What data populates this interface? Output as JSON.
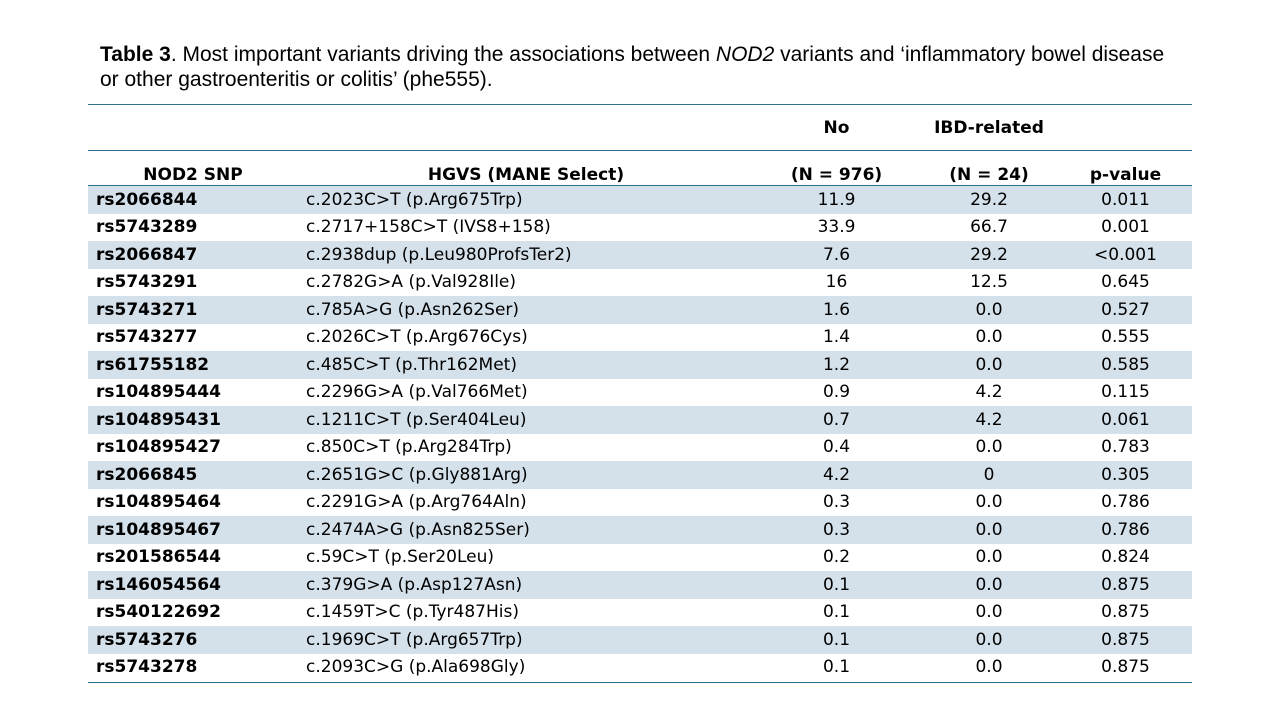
{
  "caption": {
    "label": "Table 3",
    "text_1": ". Most important variants driving the associations between ",
    "italic": "NOD2",
    "text_2": " variants and ‘inflammatory bowel disease or other gastroenteritis or colitis’ (phe555)."
  },
  "table": {
    "headers": {
      "snp": "NOD2 SNP",
      "hgvs": "HGVS (MANE Select)",
      "no_top": "No",
      "no_bottom": "(N = 976)",
      "ibd_top": "IBD-related",
      "ibd_bottom": "(N = 24)",
      "p": "p-value"
    },
    "rows": [
      {
        "snp": "rs2066844",
        "hgvs": "c.2023C>T (p.Arg675Trp)",
        "no": "11.9",
        "ibd": "29.2",
        "p": "0.011"
      },
      {
        "snp": "rs5743289",
        "hgvs": "c.2717+158C>T (IVS8+158)",
        "no": "33.9",
        "ibd": "66.7",
        "p": "0.001"
      },
      {
        "snp": "rs2066847",
        "hgvs": "c.2938dup (p.Leu980ProfsTer2)",
        "no": "7.6",
        "ibd": "29.2",
        "p": "<0.001"
      },
      {
        "snp": "rs5743291",
        "hgvs": "c.2782G>A (p.Val928Ile)",
        "no": "16",
        "ibd": "12.5",
        "p": "0.645"
      },
      {
        "snp": "rs5743271",
        "hgvs": "c.785A>G (p.Asn262Ser)",
        "no": "1.6",
        "ibd": "0.0",
        "p": "0.527"
      },
      {
        "snp": "rs5743277",
        "hgvs": "c.2026C>T (p.Arg676Cys)",
        "no": "1.4",
        "ibd": "0.0",
        "p": "0.555"
      },
      {
        "snp": "rs61755182",
        "hgvs": "c.485C>T (p.Thr162Met)",
        "no": "1.2",
        "ibd": "0.0",
        "p": "0.585"
      },
      {
        "snp": "rs104895444",
        "hgvs": "c.2296G>A (p.Val766Met)",
        "no": "0.9",
        "ibd": "4.2",
        "p": "0.115"
      },
      {
        "snp": "rs104895431",
        "hgvs": "c.1211C>T (p.Ser404Leu)",
        "no": "0.7",
        "ibd": "4.2",
        "p": "0.061"
      },
      {
        "snp": "rs104895427",
        "hgvs": "c.850C>T (p.Arg284Trp)",
        "no": "0.4",
        "ibd": "0.0",
        "p": "0.783"
      },
      {
        "snp": "rs2066845",
        "hgvs": "c.2651G>C (p.Gly881Arg)",
        "no": "4.2",
        "ibd": "0",
        "p": "0.305"
      },
      {
        "snp": "rs104895464",
        "hgvs": "c.2291G>A (p.Arg764Aln)",
        "no": "0.3",
        "ibd": "0.0",
        "p": "0.786"
      },
      {
        "snp": "rs104895467",
        "hgvs": "c.2474A>G (p.Asn825Ser)",
        "no": "0.3",
        "ibd": "0.0",
        "p": "0.786"
      },
      {
        "snp": "rs201586544",
        "hgvs": "c.59C>T (p.Ser20Leu)",
        "no": "0.2",
        "ibd": "0.0",
        "p": "0.824"
      },
      {
        "snp": "rs146054564",
        "hgvs": "c.379G>A (p.Asp127Asn)",
        "no": "0.1",
        "ibd": "0.0",
        "p": "0.875"
      },
      {
        "snp": "rs540122692",
        "hgvs": "c.1459T>C (p.Tyr487His)",
        "no": "0.1",
        "ibd": "0.0",
        "p": "0.875"
      },
      {
        "snp": "rs5743276",
        "hgvs": "c.1969C>T (p.Arg657Trp)",
        "no": "0.1",
        "ibd": "0.0",
        "p": "0.875"
      },
      {
        "snp": "rs5743278",
        "hgvs": "c.2093C>G (p.Ala698Gly)",
        "no": "0.1",
        "ibd": "0.0",
        "p": "0.875"
      }
    ]
  },
  "colors": {
    "band": "#d4e1ea",
    "rule": "#2e6f8e"
  }
}
